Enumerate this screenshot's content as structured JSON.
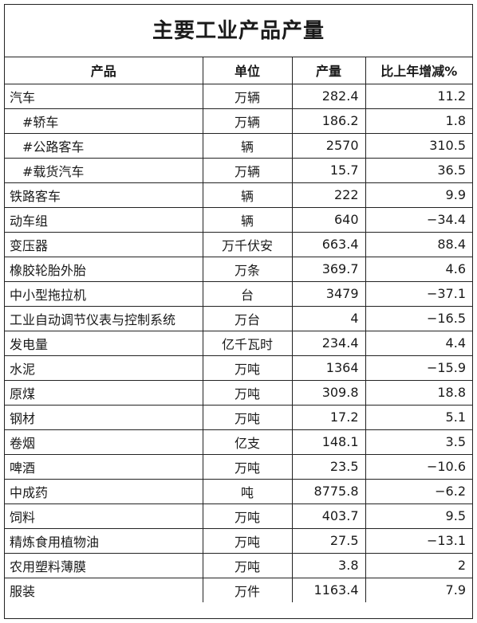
{
  "title": "主要工业产品产量",
  "columns": [
    "产品",
    "单位",
    "产量",
    "比上年增减%"
  ],
  "rows": [
    {
      "product": "汽车",
      "unit": "万辆",
      "output": "282.4",
      "change": "11.2",
      "indent": false
    },
    {
      "product": "#轿车",
      "unit": "万辆",
      "output": "186.2",
      "change": "1.8",
      "indent": true
    },
    {
      "product": "#公路客车",
      "unit": "辆",
      "output": "2570",
      "change": "310.5",
      "indent": true
    },
    {
      "product": "#载货汽车",
      "unit": "万辆",
      "output": "15.7",
      "change": "36.5",
      "indent": true
    },
    {
      "product": "铁路客车",
      "unit": "辆",
      "output": "222",
      "change": "9.9",
      "indent": false
    },
    {
      "product": "动车组",
      "unit": "辆",
      "output": "640",
      "change": "−34.4",
      "indent": false
    },
    {
      "product": "变压器",
      "unit": "万千伏安",
      "output": "663.4",
      "change": "88.4",
      "indent": false
    },
    {
      "product": "橡胶轮胎外胎",
      "unit": "万条",
      "output": "369.7",
      "change": "4.6",
      "indent": false
    },
    {
      "product": "中小型拖拉机",
      "unit": "台",
      "output": "3479",
      "change": "−37.1",
      "indent": false
    },
    {
      "product": "工业自动调节仪表与控制系统",
      "unit": "万台",
      "output": "4",
      "change": "−16.5",
      "indent": false
    },
    {
      "product": "发电量",
      "unit": "亿千瓦时",
      "output": "234.4",
      "change": "4.4",
      "indent": false
    },
    {
      "product": "水泥",
      "unit": "万吨",
      "output": "1364",
      "change": "−15.9",
      "indent": false
    },
    {
      "product": "原煤",
      "unit": "万吨",
      "output": "309.8",
      "change": "18.8",
      "indent": false
    },
    {
      "product": "钢材",
      "unit": "万吨",
      "output": "17.2",
      "change": "5.1",
      "indent": false
    },
    {
      "product": "卷烟",
      "unit": "亿支",
      "output": "148.1",
      "change": "3.5",
      "indent": false
    },
    {
      "product": "啤酒",
      "unit": "万吨",
      "output": "23.5",
      "change": "−10.6",
      "indent": false
    },
    {
      "product": "中成药",
      "unit": "吨",
      "output": "8775.8",
      "change": "−6.2",
      "indent": false
    },
    {
      "product": "饲料",
      "unit": "万吨",
      "output": "403.7",
      "change": "9.5",
      "indent": false
    },
    {
      "product": "精炼食用植物油",
      "unit": "万吨",
      "output": "27.5",
      "change": "−13.1",
      "indent": false
    },
    {
      "product": "农用塑料薄膜",
      "unit": "万吨",
      "output": "3.8",
      "change": "2",
      "indent": false
    },
    {
      "product": "服装",
      "unit": "万件",
      "output": "1163.4",
      "change": "7.9",
      "indent": false
    }
  ]
}
